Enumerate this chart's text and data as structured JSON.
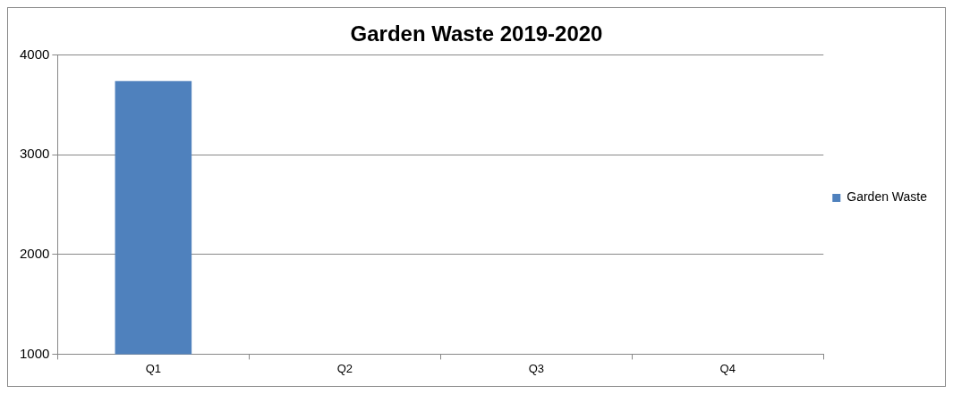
{
  "chart_data": {
    "type": "bar",
    "title": "Garden Waste 2019-2020",
    "categories": [
      "Q1",
      "Q2",
      "Q3",
      "Q4"
    ],
    "series": [
      {
        "name": "Garden Waste",
        "color": "#4f81bd",
        "values": [
          3740,
          null,
          null,
          null
        ]
      }
    ],
    "ylim": [
      1000,
      4000
    ],
    "yticks": [
      1000,
      2000,
      3000,
      4000
    ],
    "grid": "y",
    "legend": "right"
  }
}
